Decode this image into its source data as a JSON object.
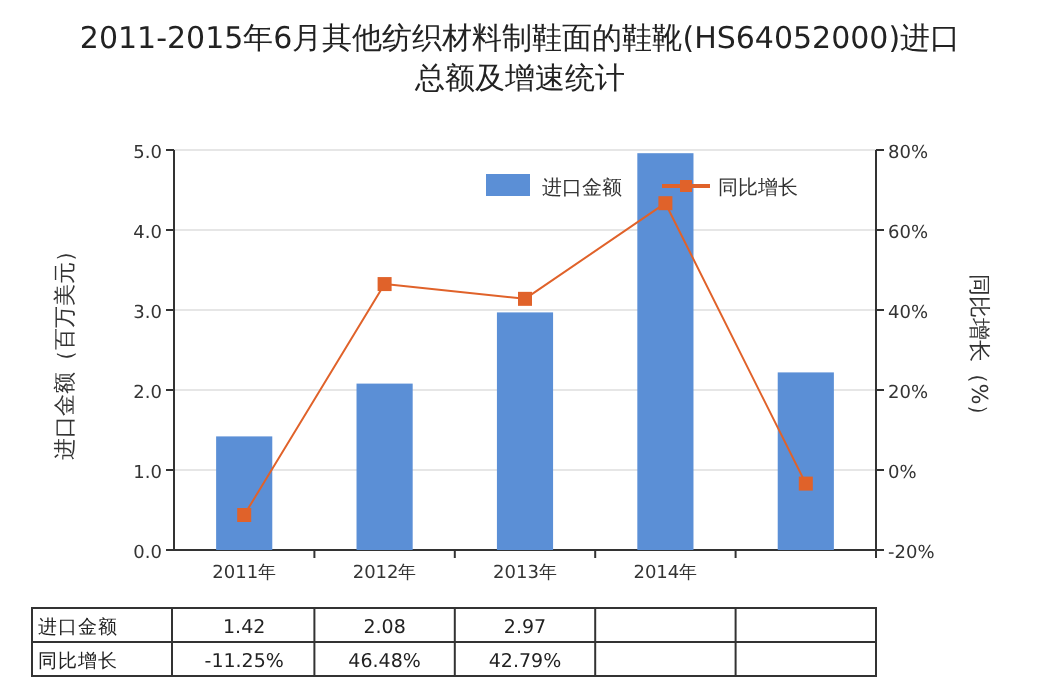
{
  "chart_data": {
    "type": "bar",
    "title": "2011-2015年6月其他纺织材料制鞋面的鞋靴(HS64052000)进口总额及增速统计",
    "ylabel": "进口金额（百万美元）",
    "y2label": "同比增长（%）",
    "categories": [
      "2011年",
      "2012年",
      "2013年",
      "2014年",
      null
    ],
    "series": [
      {
        "name": "进口金额",
        "color": "#5b8fd6",
        "values": [
          1.42,
          2.08,
          2.97,
          4.96,
          2.22
        ],
        "value_labels": [
          "1.42",
          "2.08",
          "2.97",
          null,
          null
        ]
      },
      {
        "name": "同比增长",
        "type": "line",
        "axis": "y2",
        "color": "#e0622a",
        "marker": "square",
        "line_style": "solid",
        "values": [
          -11.25,
          46.48,
          42.79,
          66.7,
          -3.4
        ],
        "value_labels": [
          "-11.25%",
          "46.48%",
          "42.79%",
          null,
          null
        ]
      }
    ],
    "ylim": [
      0,
      5
    ],
    "yticks": [
      {
        "value": 0,
        "label": "0.0"
      },
      {
        "value": 1,
        "label": "1.0"
      },
      {
        "value": 2,
        "label": "2.0"
      },
      {
        "value": 3,
        "label": "3.0"
      },
      {
        "value": 4,
        "label": "4.0"
      },
      {
        "value": 5,
        "label": "5.0"
      }
    ],
    "y2lim": [
      -20,
      80
    ],
    "y2ticks": [
      {
        "value": -20,
        "label": "-20%"
      },
      {
        "value": 0,
        "label": "0%"
      },
      {
        "value": 20,
        "label": "20%"
      },
      {
        "value": 40,
        "label": "40%"
      },
      {
        "value": 60,
        "label": "60%"
      },
      {
        "value": 80,
        "label": "80%"
      }
    ],
    "grid": "y",
    "legend": "top right"
  }
}
